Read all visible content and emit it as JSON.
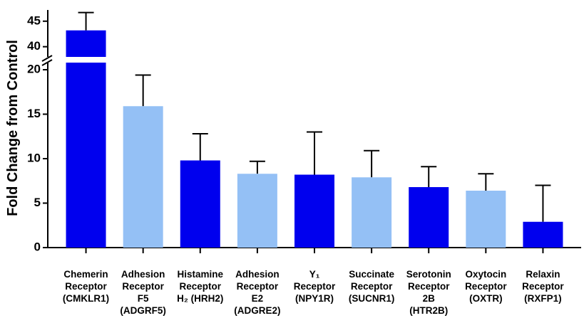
{
  "chart_data": {
    "type": "bar",
    "y_label": "Fold Change from Control",
    "categories": [
      [
        "Chemerin",
        "Receptor",
        "(CMKLR1)"
      ],
      [
        "Adhesion",
        "Receptor",
        "F5",
        "(ADGRF5)"
      ],
      [
        "Histamine",
        "Receptor",
        "H₂ (HRH2)"
      ],
      [
        "Adhesion",
        "Receptor",
        "E2",
        "(ADGRE2)"
      ],
      [
        "Y₁",
        "Receptor",
        "(NPY1R)"
      ],
      [
        "Succinate",
        "Receptor",
        "(SUCNR1)"
      ],
      [
        "Serotonin",
        "Receptor",
        "2B",
        "(HTR2B)"
      ],
      [
        "Oxytocin",
        "Receptor",
        "(OXTR)"
      ],
      [
        "Relaxin",
        "Receptor",
        "(RXFP1)"
      ]
    ],
    "values": [
      43.2,
      15.9,
      9.8,
      8.3,
      8.2,
      7.9,
      6.8,
      6.4,
      2.9
    ],
    "errors": [
      3.5,
      3.5,
      3.0,
      1.4,
      4.8,
      3.0,
      2.3,
      1.9,
      4.1
    ],
    "colors": [
      "#0000ee",
      "#94c0f5",
      "#0000ee",
      "#94c0f5",
      "#0000ee",
      "#94c0f5",
      "#0000ee",
      "#94c0f5",
      "#0000ee"
    ],
    "y_segments": [
      {
        "ylim": [
          0,
          20.8
        ],
        "yticks": [
          0,
          5,
          10,
          15,
          20
        ]
      },
      {
        "ylim": [
          38,
          47.2
        ],
        "yticks": [
          40,
          45
        ]
      }
    ]
  }
}
